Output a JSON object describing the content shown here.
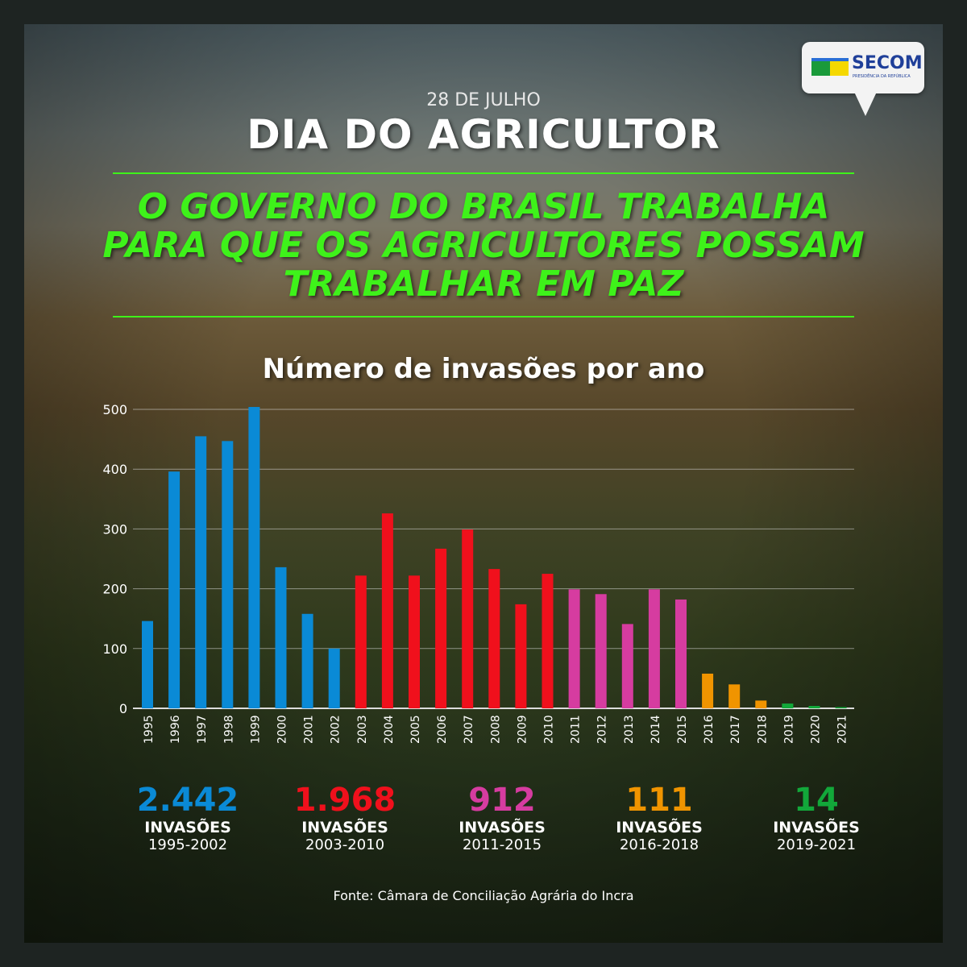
{
  "header": {
    "date": "28 DE JULHO",
    "title": "DIA DO AGRICULTOR",
    "headline": [
      "O GOVERNO DO BRASIL TRABALHA",
      "PARA QUE OS AGRICULTORES POSSAM",
      "TRABALHAR EM PAZ"
    ]
  },
  "logo": {
    "name": "SECOM",
    "sub": "PRESIDÊNCIA DA REPÚBLICA"
  },
  "chart_data": {
    "type": "bar",
    "title": "Número de invasões por ano",
    "xlabel": "",
    "ylabel": "",
    "ylim": [
      0,
      500
    ],
    "yticks": [
      0,
      100,
      200,
      300,
      400,
      500
    ],
    "grid": true,
    "categories": [
      "1995",
      "1996",
      "1997",
      "1998",
      "1999",
      "2000",
      "2001",
      "2002",
      "2003",
      "2004",
      "2005",
      "2006",
      "2007",
      "2008",
      "2009",
      "2010",
      "2011",
      "2012",
      "2013",
      "2014",
      "2015",
      "2016",
      "2017",
      "2018",
      "2019",
      "2020",
      "2021"
    ],
    "values": [
      146,
      396,
      455,
      447,
      504,
      236,
      158,
      100,
      222,
      326,
      222,
      267,
      299,
      233,
      174,
      225,
      199,
      191,
      141,
      199,
      182,
      58,
      40,
      13,
      8,
      4,
      2
    ],
    "colors": [
      "#0a8ad6",
      "#0a8ad6",
      "#0a8ad6",
      "#0a8ad6",
      "#0a8ad6",
      "#0a8ad6",
      "#0a8ad6",
      "#0a8ad6",
      "#f0101c",
      "#f0101c",
      "#f0101c",
      "#f0101c",
      "#f0101c",
      "#f0101c",
      "#f0101c",
      "#f0101c",
      "#d63ca0",
      "#d63ca0",
      "#d63ca0",
      "#d63ca0",
      "#d63ca0",
      "#f09400",
      "#f09400",
      "#f09400",
      "#12a83a",
      "#12a83a",
      "#12a83a"
    ]
  },
  "summaries": [
    {
      "total": "2.442",
      "label": "INVASÕES",
      "period": "1995-2002",
      "color": "#0a8ad6"
    },
    {
      "total": "1.968",
      "label": "INVASÕES",
      "period": "2003-2010",
      "color": "#f0101c"
    },
    {
      "total": "912",
      "label": "INVASÕES",
      "period": "2011-2015",
      "color": "#d63ca0"
    },
    {
      "total": "111",
      "label": "INVASÕES",
      "period": "2016-2018",
      "color": "#f09400"
    },
    {
      "total": "14",
      "label": "INVASÕES",
      "period": "2019-2021",
      "color": "#12a83a"
    }
  ],
  "source": "Fonte: Câmara de Conciliação Agrária do Incra"
}
